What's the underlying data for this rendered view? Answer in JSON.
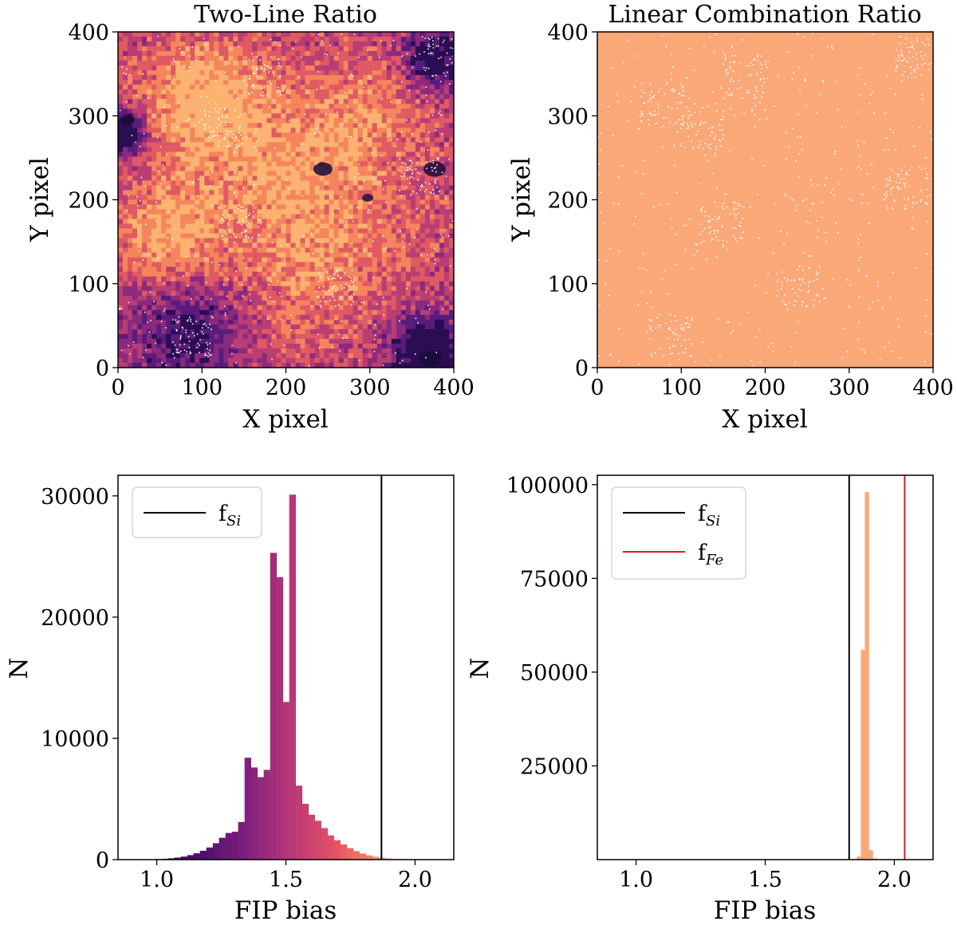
{
  "chart_data": [
    {
      "type": "heatmap",
      "title": "Two-Line Ratio",
      "xlabel": "X pixel",
      "ylabel": "Y pixel",
      "xlim": [
        0,
        400
      ],
      "ylim": [
        0,
        400
      ],
      "xticks": [
        "0",
        "100",
        "200",
        "300",
        "400"
      ],
      "yticks": [
        "0",
        "100",
        "200",
        "300",
        "400"
      ],
      "colormap": "magma",
      "colors": [
        "#2a0d52",
        "#5a1c7c",
        "#8b2a7d",
        "#b83e74",
        "#df5a63",
        "#f5855c",
        "#fcb270"
      ]
    },
    {
      "type": "heatmap",
      "title": "Linear Combination Ratio",
      "xlabel": "X pixel",
      "ylabel": "Y pixel",
      "xlim": [
        0,
        400
      ],
      "ylim": [
        0,
        400
      ],
      "xticks": [
        "0",
        "100",
        "200",
        "300",
        "400"
      ],
      "yticks": [
        "0",
        "100",
        "200",
        "300",
        "400"
      ],
      "colormap": "magma",
      "colors": [
        "#fba878"
      ]
    },
    {
      "type": "bar",
      "xlabel": "FIP bias",
      "ylabel": "N",
      "xlim": [
        0.85,
        2.15
      ],
      "ylim": [
        0,
        31700
      ],
      "xticks": [
        "1.0",
        "1.5",
        "2.0"
      ],
      "yticks": [
        "0",
        "10000",
        "20000",
        "30000"
      ],
      "bin_width": 0.0247,
      "bin_left_edges": [
        0.92,
        0.945,
        0.969,
        0.994,
        1.019,
        1.044,
        1.068,
        1.093,
        1.118,
        1.142,
        1.167,
        1.192,
        1.217,
        1.241,
        1.266,
        1.291,
        1.315,
        1.34,
        1.365,
        1.39,
        1.414,
        1.439,
        1.464,
        1.488,
        1.513,
        1.538,
        1.563,
        1.587,
        1.612,
        1.637,
        1.661,
        1.686,
        1.711,
        1.736,
        1.76,
        1.785,
        1.81,
        1.834,
        1.859,
        1.884,
        1.909,
        1.933,
        1.958,
        1.983,
        2.007,
        2.032,
        2.057,
        2.082
      ],
      "values": [
        5,
        10,
        20,
        40,
        70,
        110,
        170,
        250,
        370,
        520,
        730,
        1000,
        1350,
        1800,
        2200,
        2300,
        3100,
        8400,
        7600,
        6800,
        7400,
        25300,
        23300,
        13000,
        30100,
        6100,
        4600,
        3700,
        3200,
        2600,
        2000,
        1600,
        1250,
        950,
        700,
        500,
        350,
        230,
        150,
        90,
        60,
        35,
        20,
        12,
        7,
        4,
        2,
        1
      ],
      "series": [
        {
          "name": "f$_{Si}$",
          "type": "vline",
          "x": 1.87,
          "color": "#000000"
        }
      ],
      "legend": {
        "position": "top-left",
        "entries": [
          "f",
          "Si"
        ]
      }
    },
    {
      "type": "bar",
      "xlabel": "FIP bias",
      "ylabel": "N",
      "xlim": [
        0.85,
        2.15
      ],
      "ylim": [
        0,
        102500
      ],
      "xticks": [
        "1.0",
        "1.5",
        "2.0"
      ],
      "yticks": [
        "25000",
        "50000",
        "75000",
        "100000"
      ],
      "bin_width": 0.0155,
      "bin_left_edges": [
        1.855,
        1.8705,
        1.886,
        1.9015,
        1.917
      ],
      "values": [
        800,
        56000,
        98000,
        2500,
        300
      ],
      "color": "#fba878",
      "series": [
        {
          "name": "f$_{Si}$",
          "type": "vline",
          "x": 1.825,
          "color": "#000000"
        },
        {
          "name": "f$_{Fe}$",
          "type": "vline",
          "x": 2.04,
          "color": "#e41a1c"
        }
      ],
      "legend": {
        "position": "top-left",
        "entries": [
          [
            "f",
            "Si"
          ],
          [
            "f",
            "Fe"
          ]
        ]
      }
    }
  ]
}
